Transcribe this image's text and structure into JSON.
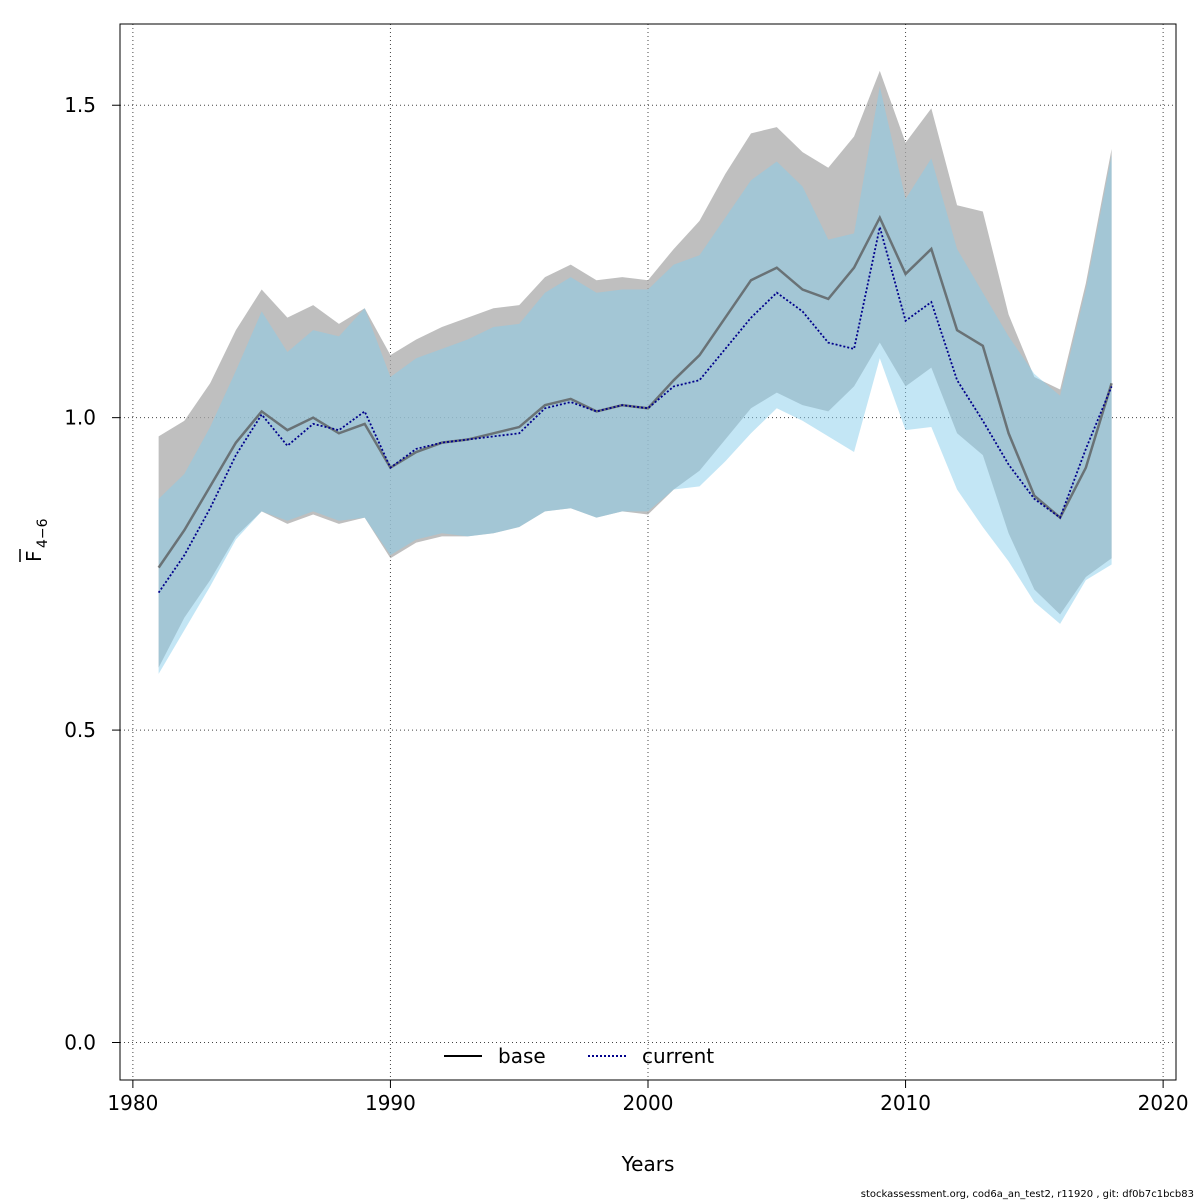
{
  "chart_data": {
    "type": "line",
    "xlabel": "Years",
    "ylabel_main": "F",
    "ylabel_sub": "4−6",
    "xlim": [
      1979.5,
      2020.5
    ],
    "ylim": [
      -0.06,
      1.63
    ],
    "x_ticks": [
      1980,
      1990,
      2000,
      2010,
      2020
    ],
    "x_tick_labels": [
      "1980",
      "1990",
      "2000",
      "2010",
      "2020"
    ],
    "y_ticks": [
      0,
      0.5,
      1.0,
      1.5
    ],
    "y_tick_labels": [
      "0.0",
      "0.5",
      "1.0",
      "1.5"
    ],
    "grid": true,
    "legend_placement": "bottom",
    "footer": "stockassessment.org, cod6a_an_test2, r11920 , git: df0b7c1bcb83",
    "series": [
      {
        "name": "base",
        "line_style": "solid",
        "line_color": "#555555",
        "band_color": "#aaaaaa",
        "x": [
          1981,
          1982,
          1983,
          1984,
          1985,
          1986,
          1987,
          1988,
          1989,
          1990,
          1991,
          1992,
          1993,
          1994,
          1995,
          1996,
          1997,
          1998,
          1999,
          2000,
          2001,
          2002,
          2003,
          2004,
          2005,
          2006,
          2007,
          2008,
          2009,
          2010,
          2011,
          2012,
          2013,
          2014,
          2015,
          2016,
          2017,
          2018
        ],
        "values": [
          0.76,
          0.82,
          0.89,
          0.96,
          1.01,
          0.98,
          1.0,
          0.975,
          0.99,
          0.92,
          0.945,
          0.96,
          0.965,
          0.975,
          0.985,
          1.02,
          1.03,
          1.01,
          1.02,
          1.015,
          1.06,
          1.1,
          1.16,
          1.22,
          1.24,
          1.205,
          1.19,
          1.24,
          1.32,
          1.23,
          1.27,
          1.14,
          1.115,
          0.975,
          0.875,
          0.84,
          0.92,
          1.055
        ],
        "lower": [
          0.6,
          0.68,
          0.74,
          0.81,
          0.85,
          0.83,
          0.845,
          0.83,
          0.84,
          0.775,
          0.8,
          0.81,
          0.81,
          0.815,
          0.825,
          0.85,
          0.855,
          0.84,
          0.85,
          0.845,
          0.885,
          0.915,
          0.965,
          1.015,
          1.04,
          1.02,
          1.01,
          1.05,
          1.12,
          1.05,
          1.08,
          0.975,
          0.94,
          0.815,
          0.725,
          0.685,
          0.745,
          0.775
        ],
        "upper": [
          0.97,
          0.995,
          1.055,
          1.14,
          1.205,
          1.16,
          1.18,
          1.15,
          1.175,
          1.1,
          1.125,
          1.145,
          1.16,
          1.175,
          1.18,
          1.225,
          1.245,
          1.22,
          1.225,
          1.22,
          1.27,
          1.315,
          1.39,
          1.455,
          1.465,
          1.425,
          1.4,
          1.45,
          1.555,
          1.44,
          1.495,
          1.34,
          1.33,
          1.165,
          1.065,
          1.045,
          1.215,
          1.43
        ]
      },
      {
        "name": "current",
        "line_style": "dotted",
        "line_color": "#00008b",
        "band_color": "#87ceeb",
        "x": [
          1981,
          1982,
          1983,
          1984,
          1985,
          1986,
          1987,
          1988,
          1989,
          1990,
          1991,
          1992,
          1993,
          1994,
          1995,
          1996,
          1997,
          1998,
          1999,
          2000,
          2001,
          2002,
          2003,
          2004,
          2005,
          2006,
          2007,
          2008,
          2009,
          2010,
          2011,
          2012,
          2013,
          2014,
          2015,
          2016,
          2017,
          2018
        ],
        "values": [
          0.72,
          0.78,
          0.855,
          0.94,
          1.005,
          0.955,
          0.99,
          0.98,
          1.01,
          0.92,
          0.95,
          0.96,
          0.965,
          0.97,
          0.975,
          1.015,
          1.025,
          1.01,
          1.02,
          1.015,
          1.05,
          1.06,
          1.11,
          1.16,
          1.2,
          1.17,
          1.12,
          1.11,
          1.305,
          1.155,
          1.185,
          1.06,
          0.995,
          0.925,
          0.87,
          0.84,
          0.95,
          1.05
        ],
        "lower": [
          0.59,
          0.66,
          0.73,
          0.805,
          0.85,
          0.835,
          0.85,
          0.835,
          0.84,
          0.78,
          0.805,
          0.815,
          0.81,
          0.815,
          0.825,
          0.85,
          0.855,
          0.84,
          0.85,
          0.85,
          0.885,
          0.89,
          0.93,
          0.975,
          1.015,
          0.995,
          0.97,
          0.945,
          1.095,
          0.98,
          0.985,
          0.885,
          0.825,
          0.77,
          0.705,
          0.67,
          0.74,
          0.765
        ],
        "upper": [
          0.87,
          0.91,
          0.985,
          1.075,
          1.17,
          1.105,
          1.14,
          1.13,
          1.175,
          1.065,
          1.095,
          1.11,
          1.125,
          1.145,
          1.15,
          1.2,
          1.225,
          1.2,
          1.205,
          1.205,
          1.245,
          1.26,
          1.32,
          1.38,
          1.41,
          1.37,
          1.285,
          1.295,
          1.53,
          1.35,
          1.415,
          1.27,
          1.2,
          1.13,
          1.07,
          1.035,
          1.205,
          1.42
        ]
      }
    ]
  }
}
